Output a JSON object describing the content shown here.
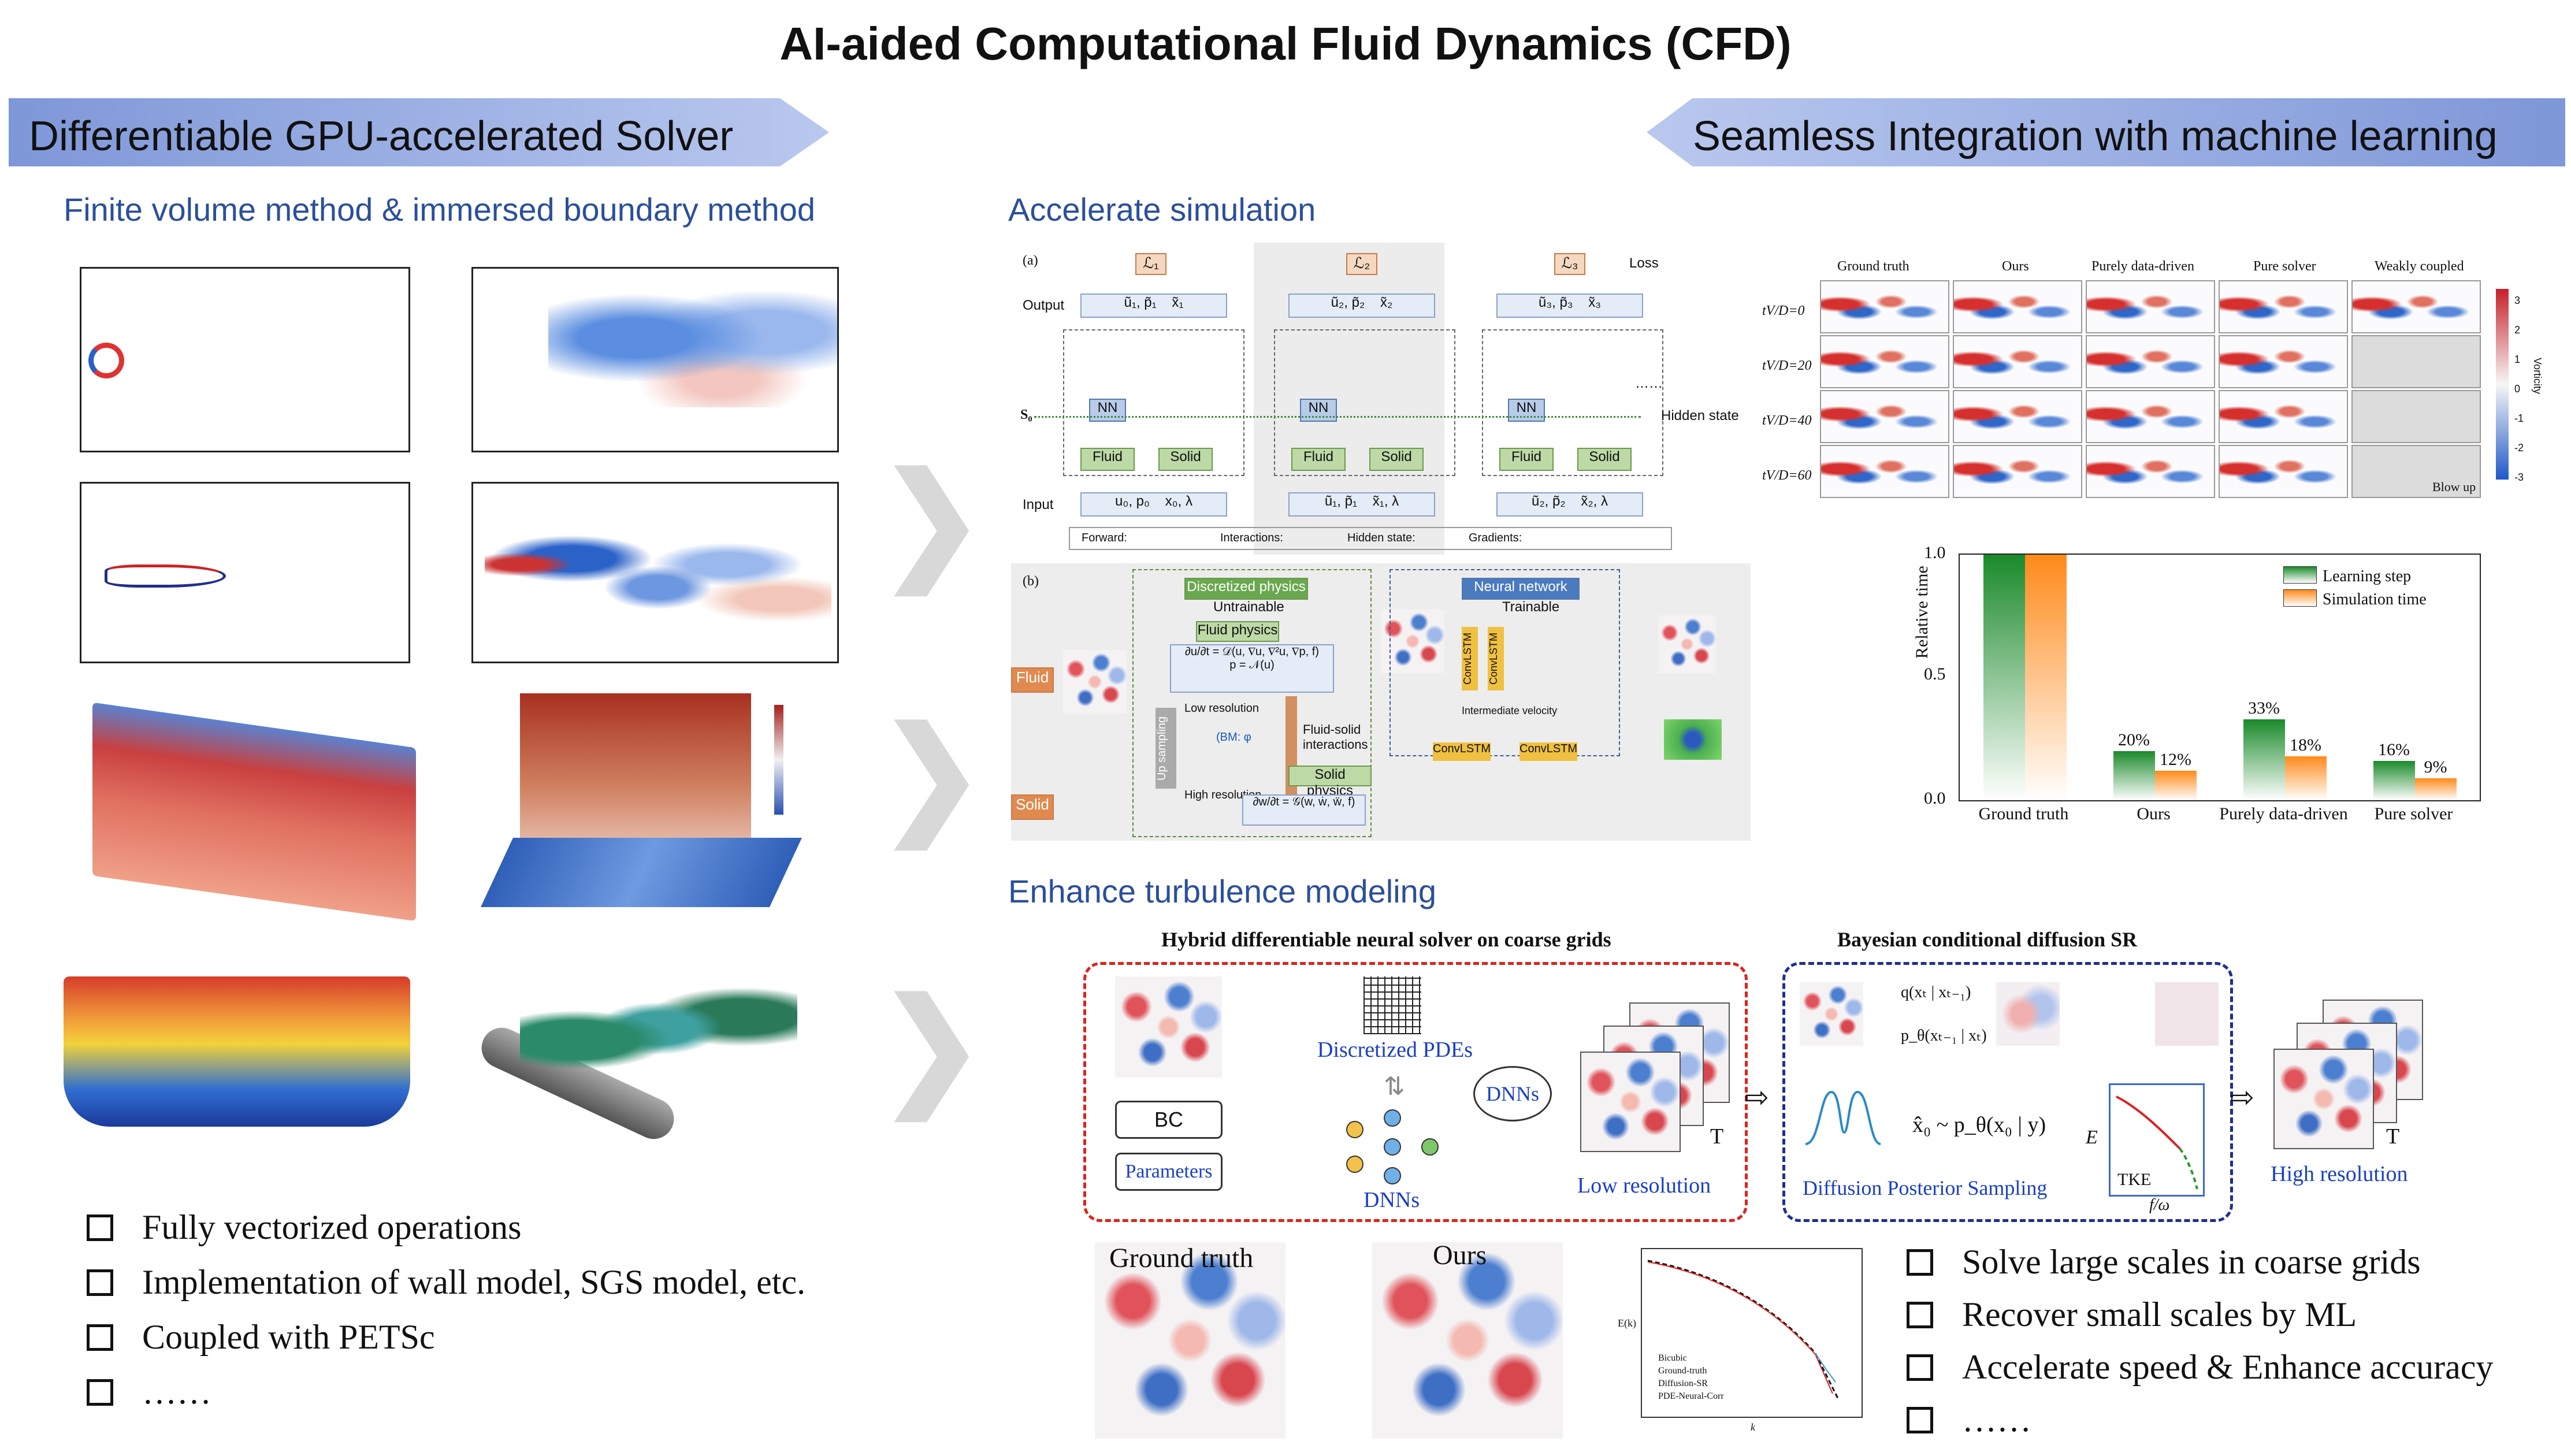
{
  "title": "AI-aided Computational Fluid Dynamics (CFD)",
  "left_banner": "Differentiable GPU-accelerated Solver",
  "right_banner": "Seamless Integration with machine learning",
  "left_section": "Finite volume method & immersed boundary method",
  "left_bullets": [
    "Fully vectorized operations",
    "Implementation of wall model, SGS model, etc.",
    "Coupled with PETSc",
    "……"
  ],
  "accel": {
    "heading": "Accelerate simulation",
    "a_label": "(a)",
    "b_label": "(b)",
    "output": "Output",
    "input": "Input",
    "s0": "S₀",
    "loss": "Loss",
    "hidden_state": "Hidden state",
    "dots": "……",
    "nn": "NN",
    "fluid": "Fluid",
    "solid": "Solid",
    "forward": "Forward:",
    "interactions": "Interactions:",
    "hidden_state_legend": "Hidden state:",
    "gradients": "Gradients:",
    "disc_physics": "Discretized physics",
    "untrainable": "Untrainable",
    "neural_network": "Neural network",
    "trainable": "Trainable",
    "fluid_physics": "Fluid physics",
    "solid_physics": "Solid physics",
    "low_res": "Low resolution",
    "high_res": "High resolution",
    "upsampling": "Up sampling",
    "fsi": "Fluid-solid interactions",
    "convlstm": "ConvLSTM",
    "intermediate": "Intermediate velocity",
    "fluid_tag": "Fluid",
    "solid_tag": "Solid",
    "ibm": "(BM: φ"
  },
  "vorticity": {
    "columns": [
      "Ground truth",
      "Ours",
      "Purely data-driven",
      "Pure solver",
      "Weakly coupled"
    ],
    "rows": [
      "tV/D=0",
      "tV/D=20",
      "tV/D=40",
      "tV/D=60"
    ],
    "blow_up": "Blow up",
    "colorbar_ticks": [
      "3",
      "2",
      "1",
      "0",
      "-1",
      "-2",
      "-3"
    ],
    "colorbar_label": "Vorticity"
  },
  "chart_data": {
    "type": "bar",
    "categories": [
      "Ground truth",
      "Ours",
      "Purely data-driven",
      "Pure solver"
    ],
    "series": [
      {
        "name": "Learning step",
        "values": [
          1.0,
          0.2,
          0.33,
          0.16
        ],
        "color": "#1a8a2a"
      },
      {
        "name": "Simulation time",
        "values": [
          1.0,
          0.12,
          0.18,
          0.09
        ],
        "color": "#ff8a1a"
      }
    ],
    "data_labels": {
      "Ours": [
        "20%",
        "12%"
      ],
      "Purely data-driven": [
        "33%",
        "18%"
      ],
      "Pure solver": [
        "16%",
        "9%"
      ]
    },
    "ylabel": "Relative time",
    "ylim": [
      0,
      1.0
    ],
    "yticks": [
      "0.0",
      "0.5",
      "1.0"
    ],
    "legend_position": "top-right"
  },
  "turb": {
    "heading": "Enhance turbulence modeling",
    "hybrid_title": "Hybrid differentiable neural solver on coarse grids",
    "bayes_title": "Bayesian conditional diffusion SR",
    "bc": "BC",
    "parameters": "Parameters",
    "disc_pdes": "Discretized PDEs",
    "dnns": "DNNs",
    "dnns_circle": "DNNs",
    "low_resolution": "Low resolution",
    "high_resolution": "High resolution",
    "T": "T",
    "q_eq": "q(xₜ | xₜ₋₁)",
    "p_eq": "p_θ(xₜ₋₁ | xₜ)",
    "x0_eq": "x̂₀ ~ p_θ(x₀ | y)",
    "dps": "Diffusion Posterior Sampling",
    "tke": "TKE",
    "E": "E",
    "f_omega": "f/ω",
    "ground_truth": "Ground truth",
    "ours": "Ours",
    "spectrum_legend": [
      "Bicubic",
      "Ground-truth",
      "Diffusion-SR",
      "PDE-Neural-Corr"
    ],
    "spectrum_ylabel": "E(k)",
    "spectrum_xlabel": "k"
  },
  "right_bullets": [
    "Solve large scales in coarse grids",
    "Recover small scales by ML",
    "Accelerate speed & Enhance accuracy",
    "……"
  ]
}
